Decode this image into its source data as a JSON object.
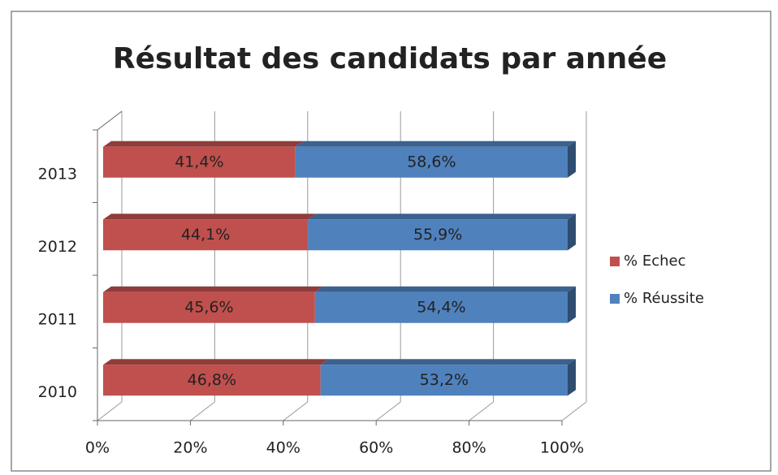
{
  "chart_data": {
    "type": "bar3d_stacked_horizontal",
    "title": "Résultat des candidats par année",
    "categories": [
      "2010",
      "2011",
      "2012",
      "2013"
    ],
    "series": [
      {
        "name": "% Echec",
        "color": "#c0504d",
        "values": [
          46.8,
          45.6,
          44.1,
          41.4
        ],
        "value_labels": [
          "46,8%",
          "45,6%",
          "44,1%",
          "41,4%"
        ]
      },
      {
        "name": "% Réussite",
        "color": "#4f81bd",
        "values": [
          53.2,
          54.4,
          55.9,
          58.6
        ],
        "value_labels": [
          "53,2%",
          "54,4%",
          "55,9%",
          "58,6%"
        ]
      }
    ],
    "xlim": [
      0,
      100
    ],
    "xticks": [
      {
        "value": 0,
        "label": "0%"
      },
      {
        "value": 20,
        "label": "20%"
      },
      {
        "value": 40,
        "label": "40%"
      },
      {
        "value": 60,
        "label": "60%"
      },
      {
        "value": 80,
        "label": "80%"
      },
      {
        "value": 100,
        "label": "100%"
      }
    ],
    "grid": true,
    "legend": "right"
  }
}
